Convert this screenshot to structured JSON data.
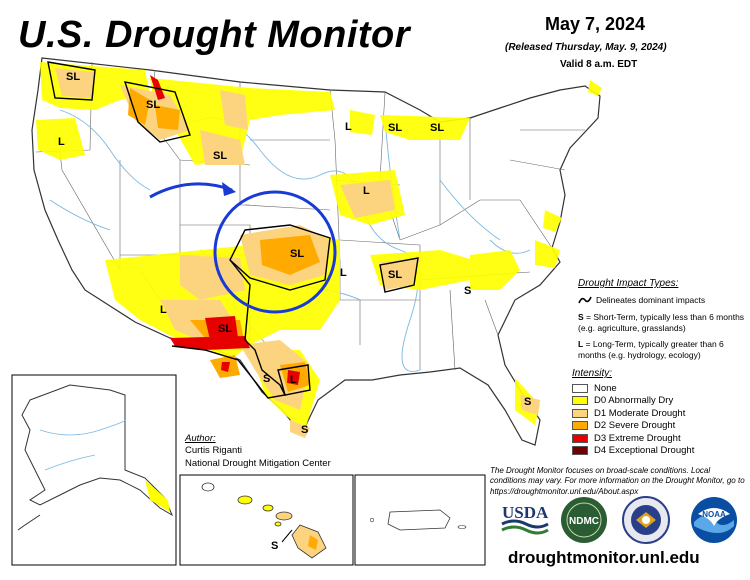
{
  "header": {
    "title": "U.S. Drought Monitor",
    "date": "May 7, 2024",
    "released": "(Released Thursday, May. 9, 2024)",
    "valid": "Valid 8 a.m. EDT"
  },
  "map_labels": {
    "sl": "SL",
    "l": "L",
    "s": "S"
  },
  "impact": {
    "title": "Drought Impact Types:",
    "line": "Delineates dominant impacts",
    "s_key": "S",
    "s_desc": " = Short-Term, typically less than 6 months (e.g. agriculture, grasslands)",
    "l_key": "L",
    "l_desc": " = Long-Term, typically greater than 6 months (e.g. hydrology, ecology)"
  },
  "intensity": {
    "title": "Intensity:",
    "items": [
      {
        "label": "None",
        "color": "#ffffff"
      },
      {
        "label": "D0 Abnormally Dry",
        "color": "#ffff00"
      },
      {
        "label": "D1 Moderate Drought",
        "color": "#fcd37f"
      },
      {
        "label": "D2 Severe Drought",
        "color": "#ffaa00"
      },
      {
        "label": "D3 Extreme Drought",
        "color": "#e60000"
      },
      {
        "label": "D4 Exceptional Drought",
        "color": "#730000"
      }
    ]
  },
  "author": {
    "title": "Author:",
    "name": "Curtis Riganti",
    "org": "National Drought Mitigation Center"
  },
  "note": "The Drought Monitor focuses on broad-scale conditions. Local conditions may vary. For more information on the Drought Monitor, go to https://droughtmonitor.unl.edu/About.aspx",
  "logos": {
    "usda": "USDA",
    "ndmc": "NDMC",
    "noaa": "NOAA"
  },
  "url": "droughtmonitor.unl.edu",
  "colors": {
    "d0": "#ffff00",
    "d1": "#fcd37f",
    "d2": "#ffaa00",
    "d3": "#e60000",
    "d4": "#730000",
    "water": "#7ab8e0",
    "circle": "#1a3ad6"
  }
}
